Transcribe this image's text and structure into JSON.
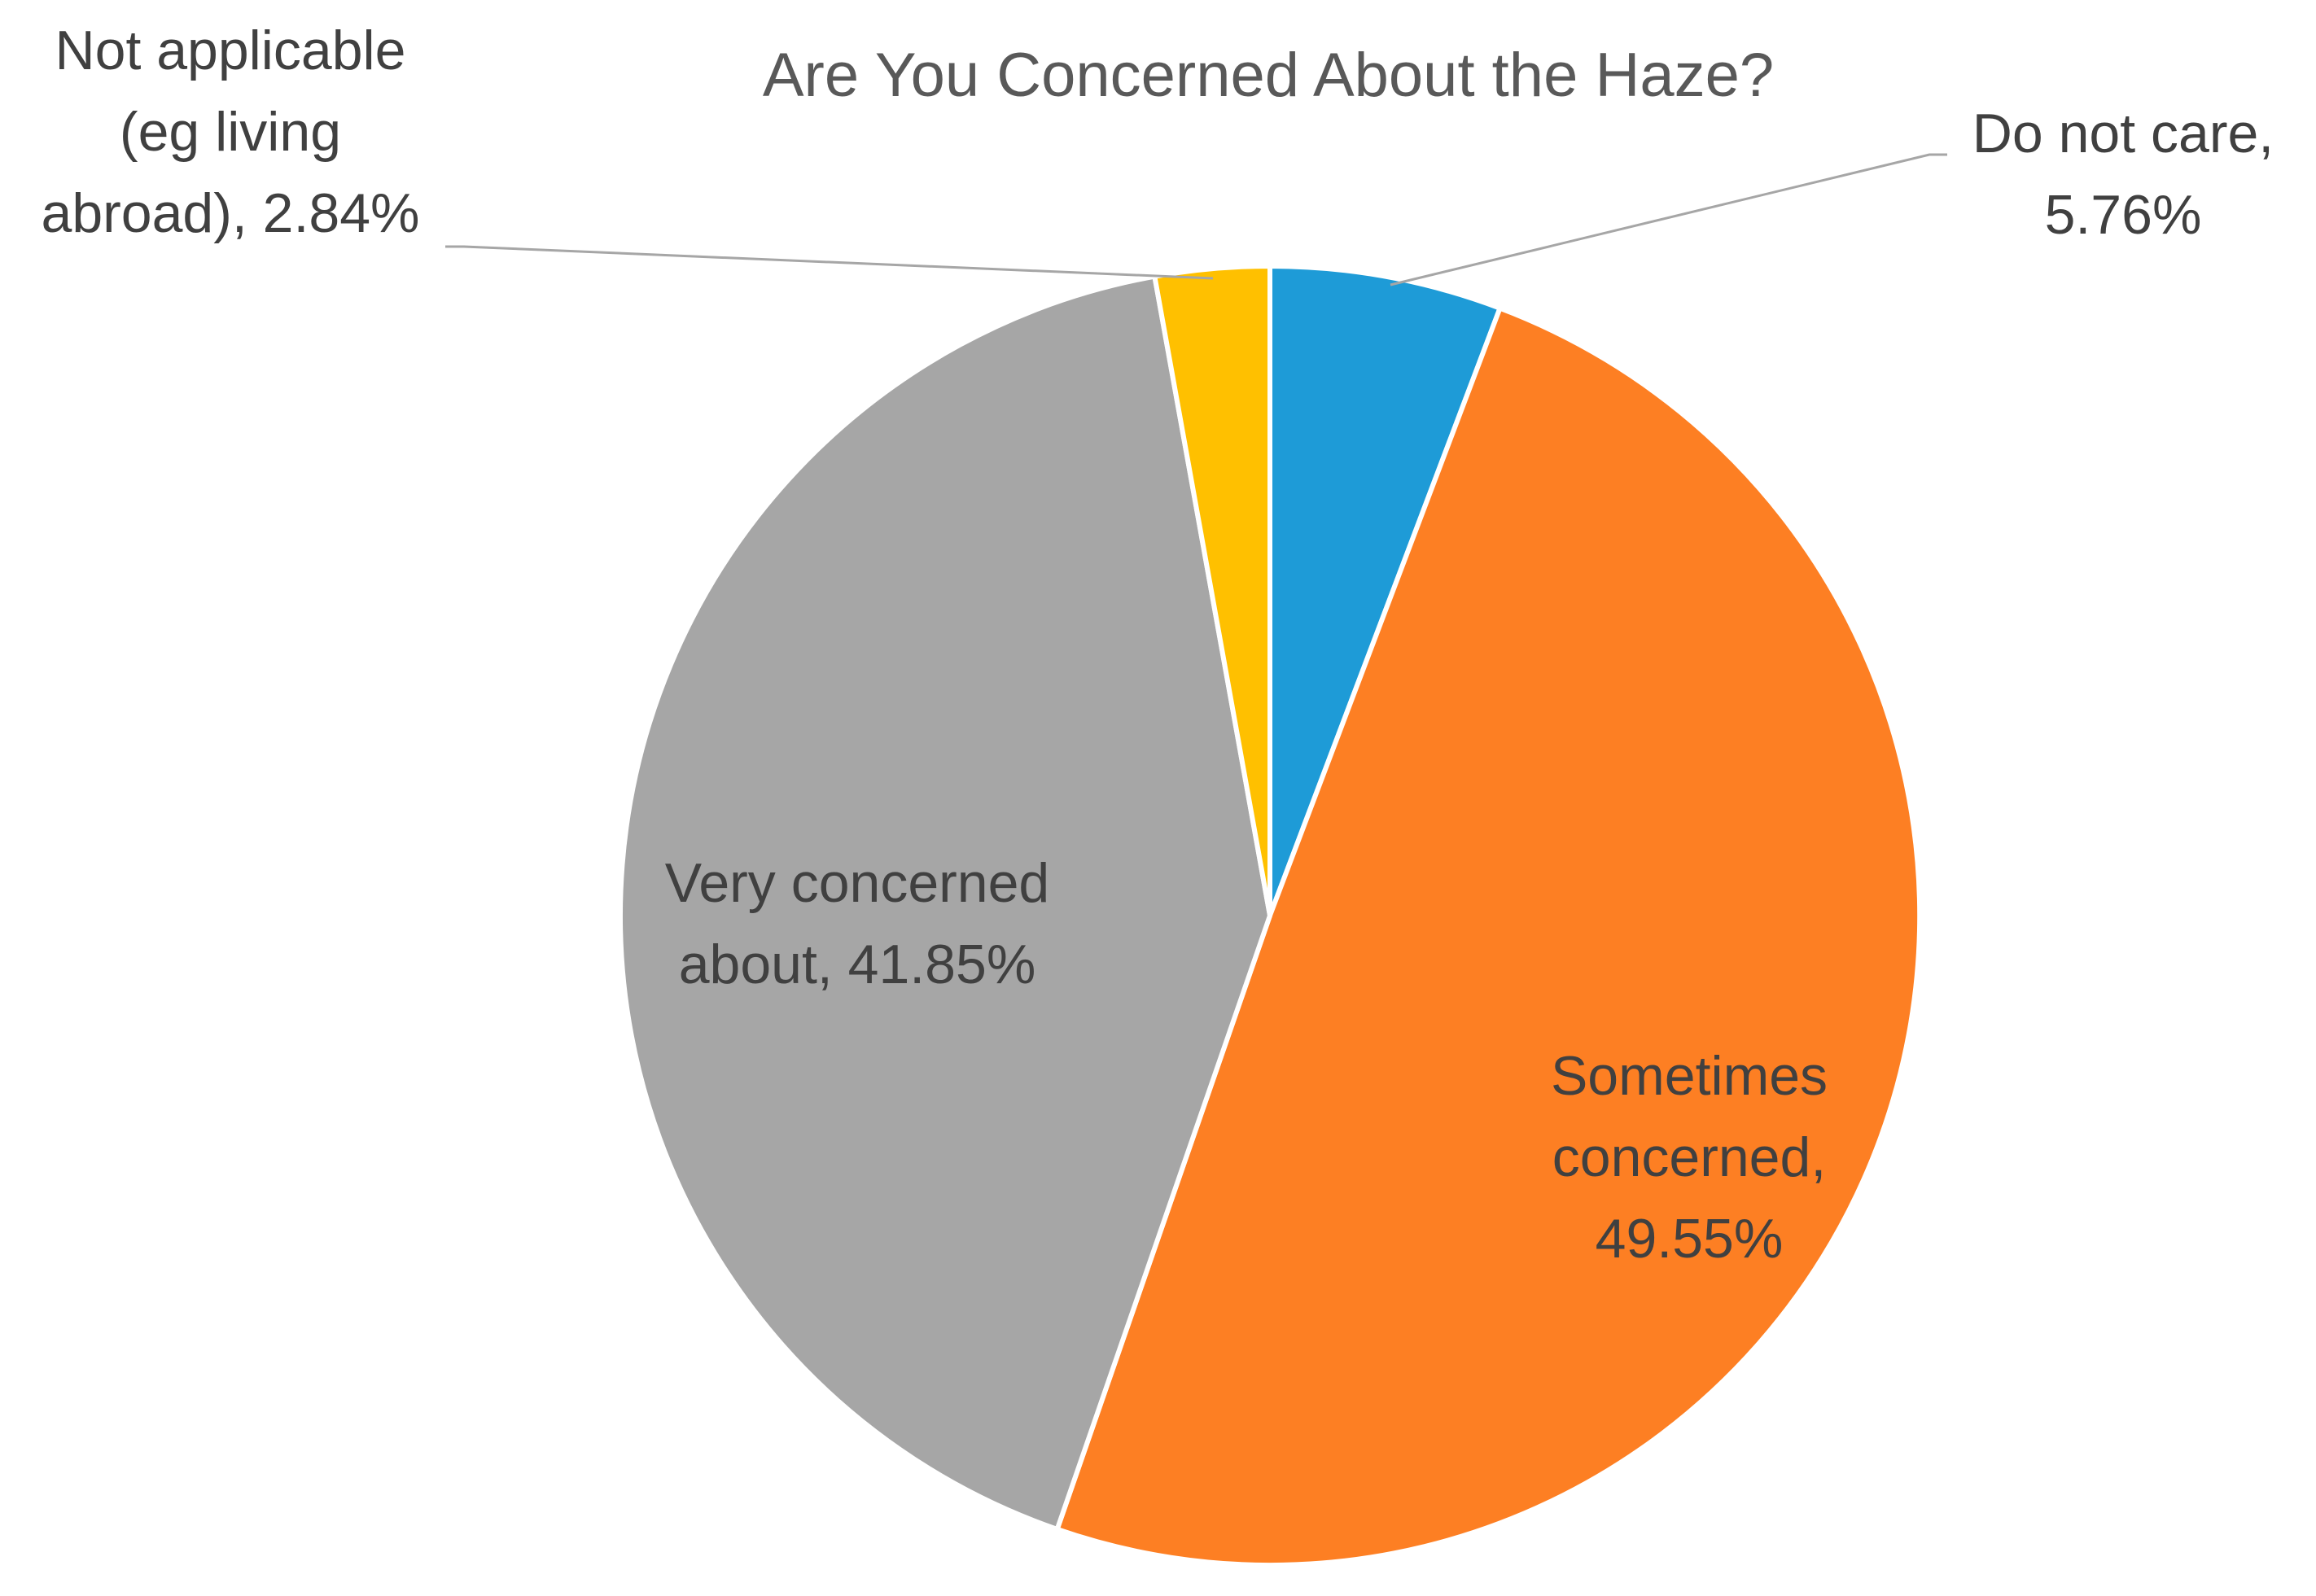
{
  "chart_data": {
    "type": "pie",
    "title": "Are You Concerned About the Haze?",
    "start_angle_deg": 0,
    "direction": "clockwise",
    "slices": [
      {
        "name": "Do not care",
        "value": 5.76,
        "color": "#1e9bd7",
        "label_lines": [
          "Do not care,",
          "5.76%"
        ],
        "label_placement": "outside-top-right"
      },
      {
        "name": "Sometimes concerned",
        "value": 49.55,
        "color": "#fd7f23",
        "label_lines": [
          "Sometimes",
          "concerned,",
          "49.55%"
        ],
        "label_placement": "inside"
      },
      {
        "name": "Very concerned about",
        "value": 41.85,
        "color": "#a6a6a6",
        "label_lines": [
          "Very concerned",
          "about, 41.85%"
        ],
        "label_placement": "inside"
      },
      {
        "name": "Not applicable (eg living abroad)",
        "value": 2.84,
        "color": "#ffc000",
        "label_lines": [
          "Not applicable",
          "(eg living",
          "abroad), 2.84%"
        ],
        "label_placement": "outside-top-left"
      }
    ],
    "legend": "none",
    "data_labels": "category name and percentage"
  }
}
